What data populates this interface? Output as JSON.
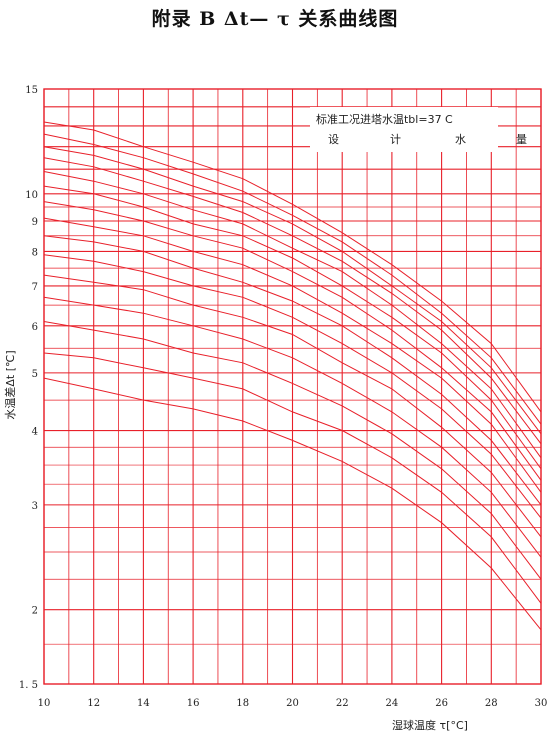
{
  "page": {
    "title": "附录 B    Δt— τ 关系曲线图"
  },
  "chart_data": {
    "type": "line",
    "title": "附录 B    Δt— τ 关系曲线图",
    "xlabel": "湿球温度 τ[°C]",
    "ylabel": "水温差Δt [℃]",
    "y_scale": "log",
    "xlim": [
      10,
      30
    ],
    "ylim": [
      1.5,
      15
    ],
    "x_ticks": [
      10,
      12,
      14,
      16,
      18,
      20,
      22,
      24,
      26,
      28,
      30
    ],
    "y_ticks": [
      1.5,
      2,
      3,
      4,
      5,
      6,
      7,
      8,
      9,
      10,
      15
    ],
    "y_tick_labels": [
      "1. 5",
      "2",
      "3",
      "4",
      "5",
      "6",
      "7",
      "8",
      "9",
      "10",
      "15"
    ],
    "grid": true,
    "line_color": "#e8202a",
    "annotation": {
      "line1": "标准工况进塔水温tbl=37 C",
      "line2": [
        "设",
        "计",
        "水",
        "量"
      ]
    },
    "x": [
      10,
      12,
      14,
      16,
      18,
      20,
      22,
      24,
      26,
      28,
      30
    ],
    "series": [
      {
        "values": [
          13.2,
          12.8,
          12.0,
          11.3,
          10.6,
          9.6,
          8.6,
          7.6,
          6.6,
          5.6,
          4.3
        ]
      },
      {
        "values": [
          12.6,
          12.1,
          11.5,
          10.8,
          10.1,
          9.2,
          8.3,
          7.3,
          6.3,
          5.3,
          4.1
        ]
      },
      {
        "values": [
          12.0,
          11.6,
          11.0,
          10.3,
          9.7,
          8.9,
          8.0,
          7.0,
          6.1,
          5.1,
          3.95
        ]
      },
      {
        "values": [
          11.5,
          11.1,
          10.5,
          9.9,
          9.3,
          8.5,
          7.7,
          6.8,
          5.9,
          4.9,
          3.8
        ]
      },
      {
        "values": [
          10.9,
          10.5,
          10.0,
          9.4,
          8.9,
          8.1,
          7.4,
          6.5,
          5.6,
          4.7,
          3.6
        ]
      },
      {
        "values": [
          10.3,
          10.0,
          9.5,
          8.9,
          8.5,
          7.8,
          7.0,
          6.2,
          5.4,
          4.5,
          3.45
        ]
      },
      {
        "values": [
          9.7,
          9.4,
          9.0,
          8.5,
          8.1,
          7.4,
          6.7,
          5.9,
          5.1,
          4.3,
          3.3
        ]
      },
      {
        "values": [
          9.1,
          8.8,
          8.5,
          8.0,
          7.6,
          7.0,
          6.3,
          5.6,
          4.9,
          4.1,
          3.15
        ]
      },
      {
        "values": [
          8.5,
          8.3,
          8.0,
          7.5,
          7.1,
          6.6,
          6.0,
          5.3,
          4.6,
          3.85,
          3.0
        ]
      },
      {
        "values": [
          7.9,
          7.7,
          7.4,
          7.0,
          6.7,
          6.2,
          5.6,
          5.0,
          4.35,
          3.65,
          2.85
        ]
      },
      {
        "values": [
          7.3,
          7.1,
          6.9,
          6.5,
          6.2,
          5.8,
          5.2,
          4.7,
          4.05,
          3.4,
          2.65
        ]
      },
      {
        "values": [
          6.7,
          6.5,
          6.3,
          6.0,
          5.7,
          5.3,
          4.8,
          4.3,
          3.75,
          3.15,
          2.45
        ]
      },
      {
        "values": [
          6.1,
          5.9,
          5.7,
          5.4,
          5.2,
          4.8,
          4.4,
          3.95,
          3.45,
          2.9,
          2.25
        ]
      },
      {
        "values": [
          5.4,
          5.3,
          5.1,
          4.9,
          4.7,
          4.3,
          4.0,
          3.6,
          3.15,
          2.65,
          2.05
        ]
      },
      {
        "values": [
          4.9,
          4.7,
          4.5,
          4.35,
          4.15,
          3.85,
          3.55,
          3.2,
          2.8,
          2.35,
          1.85
        ]
      }
    ]
  }
}
